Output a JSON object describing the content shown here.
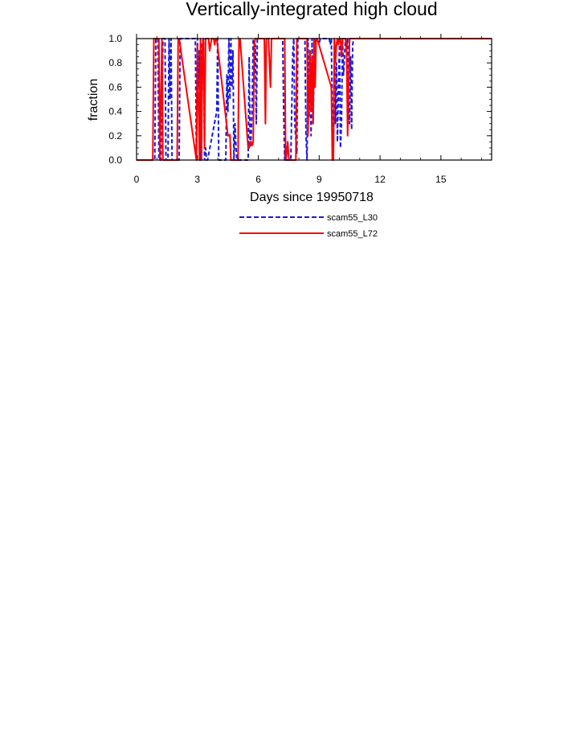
{
  "chart_data": {
    "type": "line",
    "title": "Vertically-integrated high cloud",
    "xlabel": "Days since 19950718",
    "ylabel": "fraction",
    "xlim": [
      0,
      17.5
    ],
    "ylim": [
      0,
      1
    ],
    "xticks": [
      0,
      3,
      6,
      9,
      12,
      15
    ],
    "xtick_labels": [
      "0",
      "3",
      "6",
      "9",
      "12",
      "15"
    ],
    "yticks": [
      0,
      0.2,
      0.4,
      0.6,
      0.8,
      1.0
    ],
    "ytick_labels": [
      "0.0",
      "0.2",
      "0.4",
      "0.6",
      "0.8",
      "1.0"
    ],
    "grid": false,
    "legend_position": "below",
    "series": [
      {
        "name": "scam55_L30",
        "color": "#1a1adc",
        "dash": "dashed",
        "x": [
          0,
          0.9,
          0.95,
          1.05,
          1.1,
          1.2,
          1.3,
          1.4,
          1.45,
          1.55,
          1.6,
          1.65,
          1.7,
          1.75,
          1.8,
          2.1,
          2.15,
          2.2,
          2.9,
          2.95,
          3.0,
          3.05,
          3.1,
          3.15,
          3.2,
          3.3,
          3.35,
          3.4,
          3.45,
          3.5,
          3.95,
          4.0,
          4.05,
          4.1,
          4.4,
          4.45,
          4.5,
          4.55,
          4.6,
          4.65,
          4.7,
          4.75,
          4.8,
          4.85,
          4.9,
          4.95,
          5.05,
          5.15,
          5.5,
          5.55,
          5.6,
          5.65,
          5.7,
          5.75,
          5.8,
          5.85,
          5.9,
          5.95,
          6.0,
          7.2,
          7.25,
          7.3,
          7.35,
          7.4,
          7.6,
          7.7,
          7.75,
          7.8,
          7.9,
          7.95,
          8.3,
          8.35,
          8.4,
          8.45,
          8.5,
          8.55,
          8.6,
          8.65,
          8.7,
          8.75,
          8.8,
          8.85,
          8.9,
          9.0,
          9.05,
          9.5,
          9.55,
          9.6,
          9.65,
          9.7,
          9.75,
          9.8,
          9.85,
          9.9,
          9.95,
          10.0,
          10.05,
          10.1,
          10.15,
          10.2,
          10.3,
          10.35,
          10.4,
          10.45,
          10.5,
          10.55,
          10.6,
          10.65,
          10.7,
          17.5
        ],
        "y": [
          0,
          0,
          1.0,
          1.0,
          0,
          0,
          1.0,
          1.0,
          0,
          0,
          1.0,
          0.5,
          1.0,
          0,
          0,
          0,
          1.0,
          1.0,
          1.0,
          0,
          1.0,
          0.6,
          0.9,
          0,
          0.95,
          1.0,
          0,
          0.1,
          0,
          0,
          0.4,
          1.0,
          0,
          0,
          0,
          0.7,
          0.4,
          1.0,
          0.5,
          1.0,
          0.6,
          0.9,
          0,
          0.3,
          0.1,
          0,
          0,
          0,
          0,
          0.85,
          0.1,
          0.2,
          0.5,
          1.0,
          0.7,
          0.95,
          0.3,
          1.0,
          1.0,
          1.0,
          0.4,
          0,
          0.15,
          0,
          0,
          0.9,
          1.0,
          0.3,
          0.05,
          1.0,
          1.0,
          0.2,
          0,
          1.0,
          0.35,
          0.9,
          0.2,
          1.0,
          0.3,
          0.75,
          1.0,
          0.98,
          1.0,
          0.95,
          1.0,
          1.0,
          0.95,
          1.0,
          0.3,
          0.05,
          1.0,
          0.3,
          0.8,
          0.15,
          0.6,
          0.95,
          0.1,
          0.3,
          1.0,
          0.7,
          1.0,
          0.9,
          1.0,
          0.45,
          0.3,
          0.85,
          0.25,
          0.95,
          1.0,
          1.0
        ]
      },
      {
        "name": "scam55_L72",
        "color": "#ff0000",
        "dash": "solid",
        "x": [
          0,
          0.8,
          0.85,
          1.05,
          1.1,
          1.15,
          1.25,
          1.3,
          1.35,
          2.0,
          2.05,
          2.1,
          2.95,
          3.0,
          3.1,
          3.15,
          3.2,
          3.25,
          3.3,
          3.35,
          3.4,
          3.45,
          3.5,
          3.55,
          3.6,
          3.65,
          3.7,
          3.75,
          3.8,
          3.85,
          3.9,
          3.95,
          4.5,
          4.55,
          4.6,
          4.65,
          4.7,
          4.75,
          5.0,
          5.05,
          5.1,
          5.5,
          5.55,
          5.6,
          5.65,
          5.7,
          5.75,
          5.8,
          5.85,
          5.9,
          6.3,
          6.35,
          6.4,
          6.5,
          6.6,
          6.65,
          6.7,
          7.3,
          7.35,
          7.4,
          7.45,
          7.5,
          7.55,
          7.6,
          7.85,
          7.9,
          7.95,
          8.4,
          8.45,
          8.5,
          8.55,
          8.6,
          8.65,
          8.7,
          8.75,
          8.8,
          8.85,
          8.9,
          9.6,
          9.65,
          9.7,
          9.75,
          9.8,
          9.85,
          9.9,
          9.95,
          10.0,
          10.05,
          10.1,
          10.15,
          10.2,
          10.3,
          10.35,
          10.4,
          10.45,
          10.5,
          17.5
        ],
        "y": [
          0,
          0,
          1.0,
          1.0,
          1.0,
          0,
          1.0,
          0,
          0,
          0,
          1.0,
          1.0,
          0,
          0.95,
          0,
          1.0,
          0,
          0.95,
          1.0,
          0.1,
          1.0,
          1.0,
          1.0,
          1.0,
          0.9,
          0.95,
          1.0,
          1.0,
          1.0,
          0.95,
          1.0,
          1.0,
          0.2,
          0.2,
          0.21,
          0,
          0,
          0,
          0,
          1.0,
          1.0,
          0.1,
          0.1,
          0.15,
          0.15,
          0.12,
          0.15,
          0.95,
          1.0,
          1.0,
          1.0,
          0.3,
          1.0,
          1.0,
          0.6,
          1.0,
          1.0,
          1.0,
          0,
          0.05,
          0.15,
          0.02,
          0,
          0,
          0,
          1.0,
          1.0,
          1.0,
          0.2,
          0.6,
          0.9,
          0.4,
          0.85,
          0.3,
          1.0,
          0.6,
          1.0,
          1.0,
          0.6,
          0,
          0,
          1.0,
          0.8,
          0.95,
          1.0,
          0.95,
          1.0,
          1.0,
          0.85,
          1.0,
          1.0,
          1.0,
          0.95,
          0.2,
          0.6,
          1.0,
          1.0
        ]
      }
    ]
  }
}
